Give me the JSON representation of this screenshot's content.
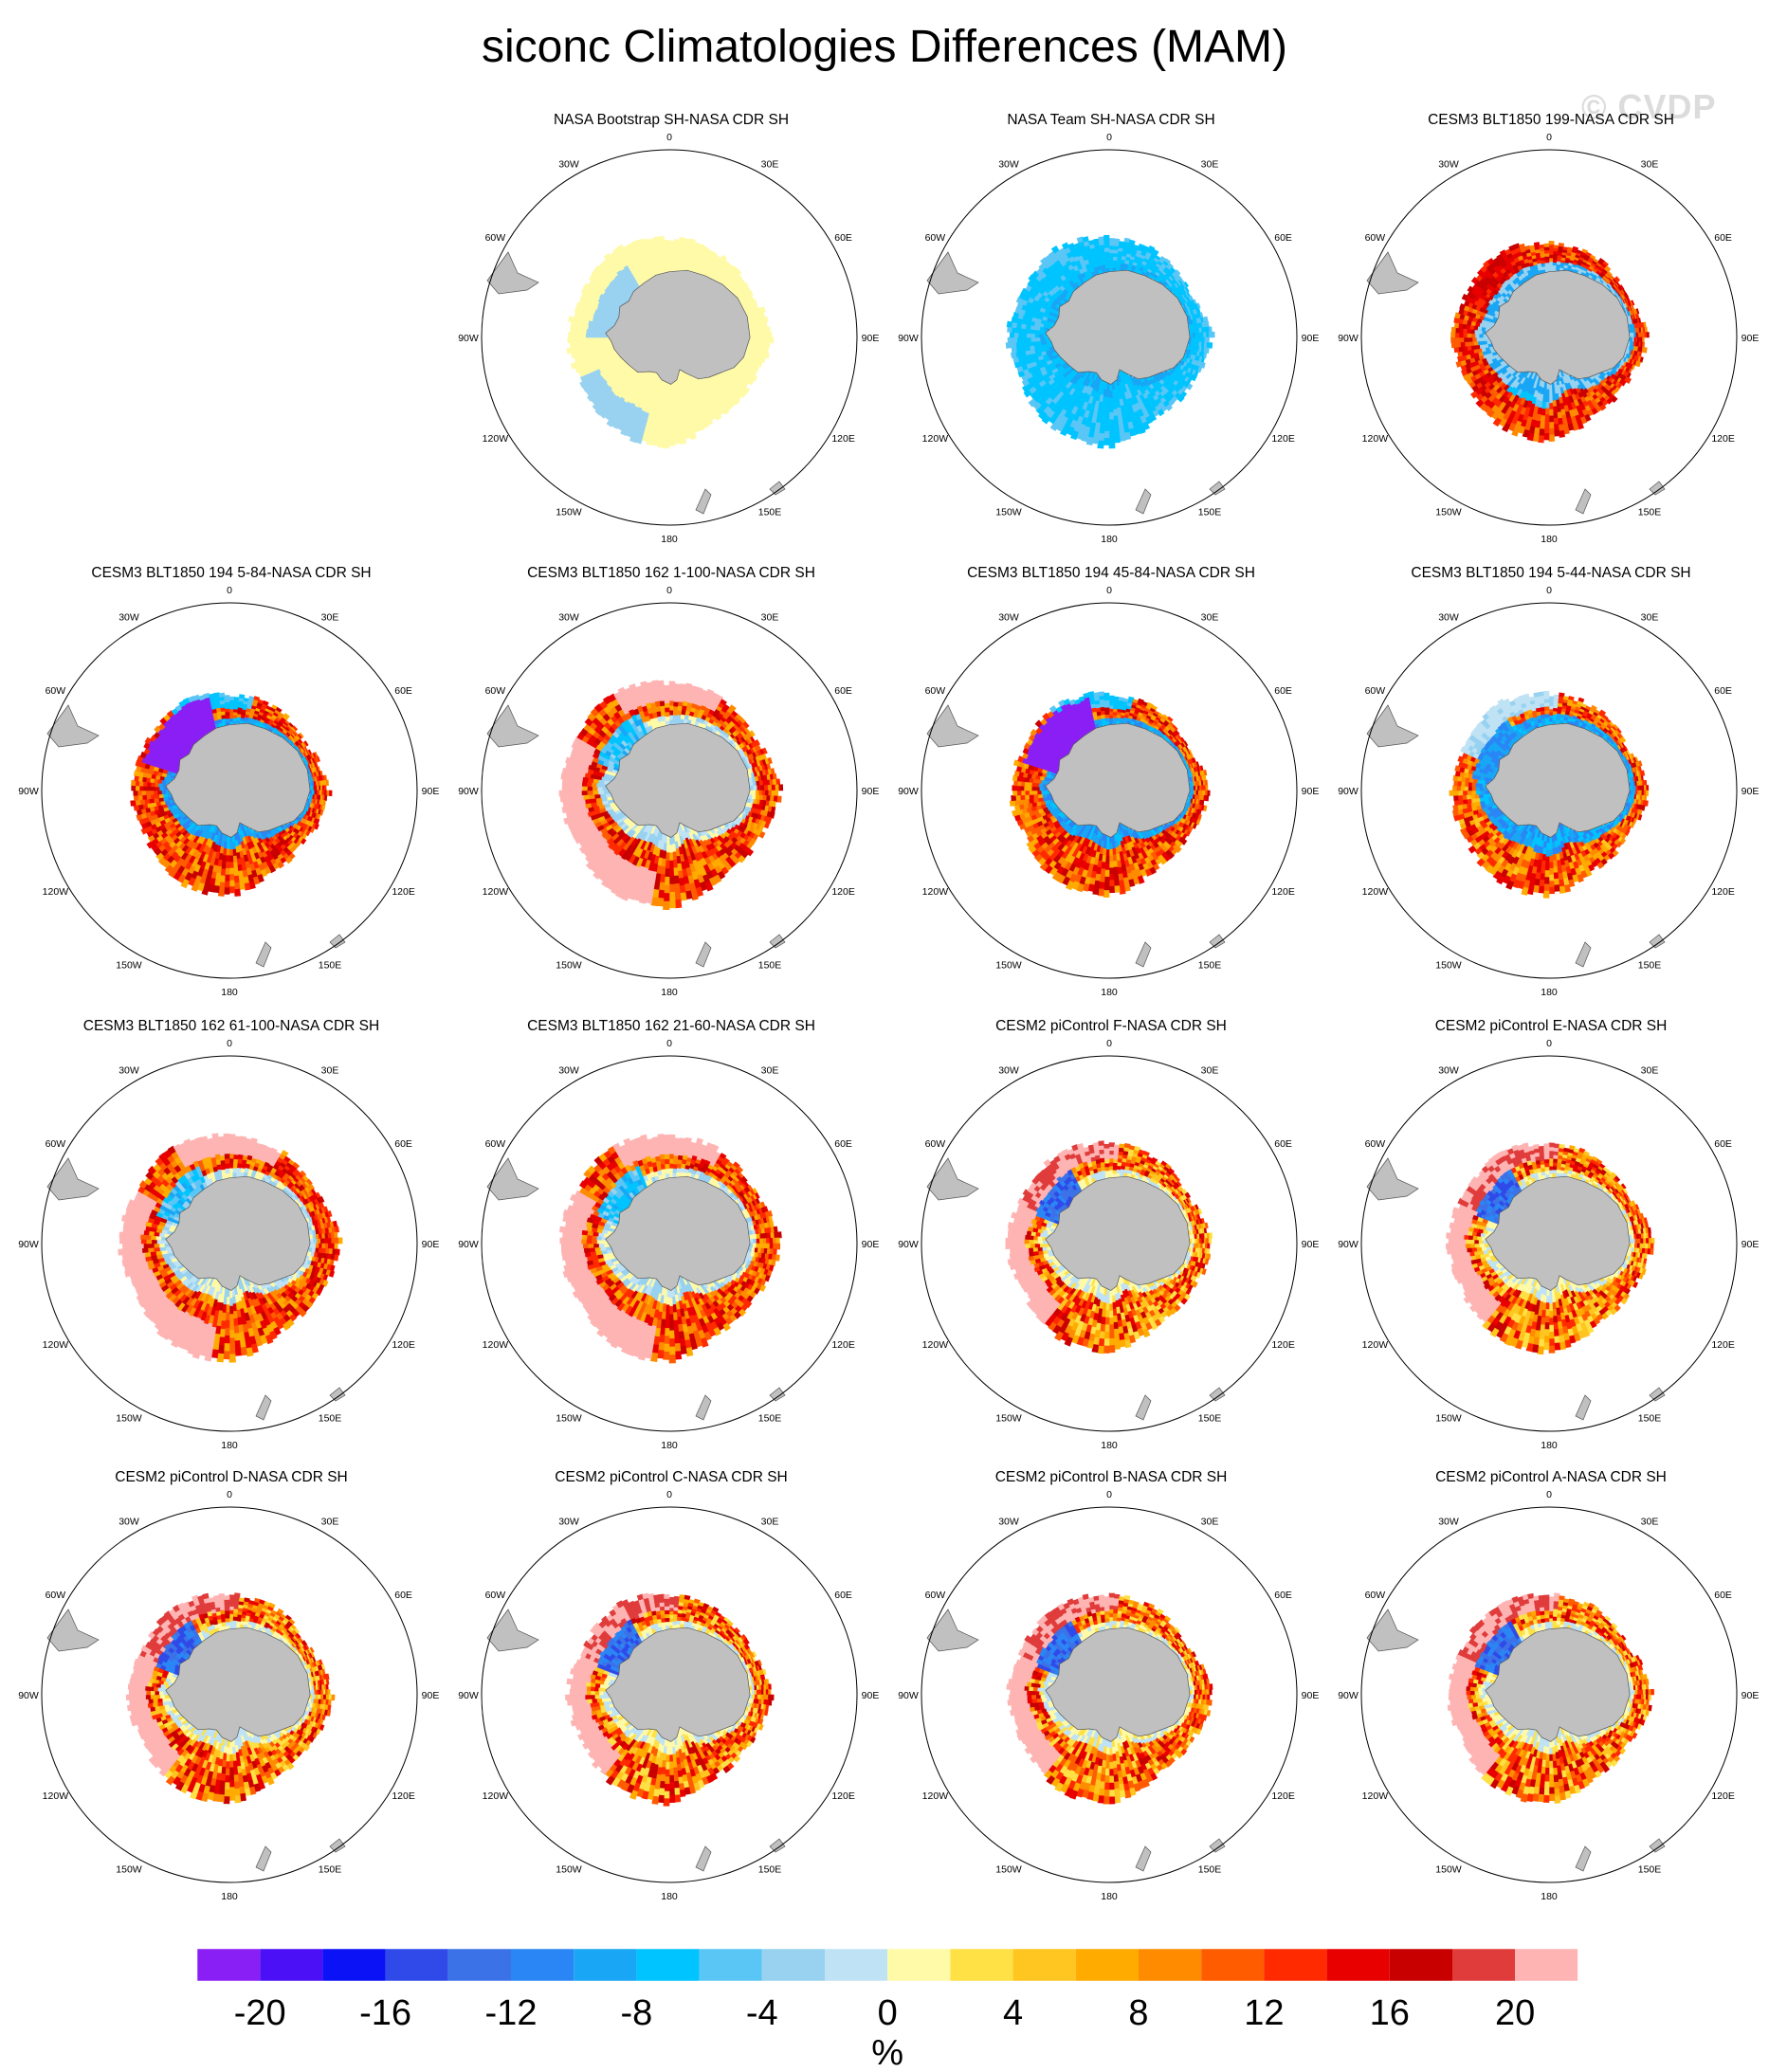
{
  "title": "siconc Climatologies Differences (MAM)",
  "watermark": "© CVDP",
  "colors": {
    "land": "#c0c0c0",
    "circle": "#000000",
    "background": "#ffffff"
  },
  "chart_data": {
    "type": "heatmap",
    "projection": "south-polar-stereographic",
    "units": "%",
    "longitude_labels": [
      "0",
      "30E",
      "60E",
      "90E",
      "120E",
      "150E",
      "180",
      "150W",
      "120W",
      "90W",
      "60W",
      "30W"
    ],
    "colorbar": {
      "colors": [
        "#8a1ff5",
        "#4b10f5",
        "#0b12f5",
        "#2f4ae8",
        "#3c72e8",
        "#2b86f5",
        "#18a6f5",
        "#00c4ff",
        "#5ac6f5",
        "#98d2f0",
        "#bfe3f5",
        "#fffaa8",
        "#ffe045",
        "#ffc520",
        "#ffab00",
        "#ff8c00",
        "#ff5c00",
        "#ff2a00",
        "#e80000",
        "#c80000",
        "#e03c3c",
        "#ffb4b4"
      ],
      "boundaries": [
        -22,
        -20,
        -18,
        -16,
        -14,
        -12,
        -10,
        -8,
        -6,
        -4,
        -2,
        0,
        2,
        4,
        6,
        8,
        10,
        12,
        14,
        16,
        18,
        20,
        22
      ],
      "labels": [
        "-20",
        "-16",
        "-12",
        "-8",
        "-4",
        "0",
        "4",
        "8",
        "12",
        "16",
        "20"
      ],
      "label_values": [
        -20,
        -16,
        -12,
        -8,
        -4,
        0,
        4,
        8,
        12,
        16,
        20
      ],
      "units_label": "%"
    },
    "panels": [
      {
        "title": "NASA Bootstrap SH-NASA CDR SH",
        "pattern": "bootstrap",
        "extent": 1.0
      },
      {
        "title": "NASA Team SH-NASA CDR SH",
        "pattern": "team",
        "extent": 1.0
      },
      {
        "title": "CESM3 BLT1850 199-NASA CDR SH",
        "pattern": "redring",
        "extent": 0.95
      },
      {
        "title": "CESM3 BLT1850 194 5-84-NASA CDR SH",
        "pattern": "purpleweddell",
        "extent": 0.97
      },
      {
        "title": "CESM3 BLT1850 162 1-100-NASA CDR SH",
        "pattern": "pinkouter",
        "extent": 1.08
      },
      {
        "title": "CESM3 BLT1850 194 45-84-NASA CDR SH",
        "pattern": "purpleweddell",
        "extent": 0.97
      },
      {
        "title": "CESM3 BLT1850 194 5-44-NASA CDR SH",
        "pattern": "mixedring",
        "extent": 0.97
      },
      {
        "title": "CESM3 BLT1850 162 61-100-NASA CDR SH",
        "pattern": "pinkouter",
        "extent": 1.08
      },
      {
        "title": "CESM3 BLT1850 162 21-60-NASA CDR SH",
        "pattern": "pinkouter",
        "extent": 1.08
      },
      {
        "title": "CESM2 piControl F-NASA CDR SH",
        "pattern": "cesm2",
        "extent": 1.0
      },
      {
        "title": "CESM2 piControl E-NASA CDR SH",
        "pattern": "cesm2",
        "extent": 1.0
      },
      {
        "title": "CESM2 piControl D-NASA CDR SH",
        "pattern": "cesm2",
        "extent": 1.0
      },
      {
        "title": "CESM2 piControl C-NASA CDR SH",
        "pattern": "cesm2",
        "extent": 1.0
      },
      {
        "title": "CESM2 piControl B-NASA CDR SH",
        "pattern": "cesm2",
        "extent": 1.0
      },
      {
        "title": "CESM2 piControl A-NASA CDR SH",
        "pattern": "cesm2",
        "extent": 1.0
      }
    ]
  }
}
